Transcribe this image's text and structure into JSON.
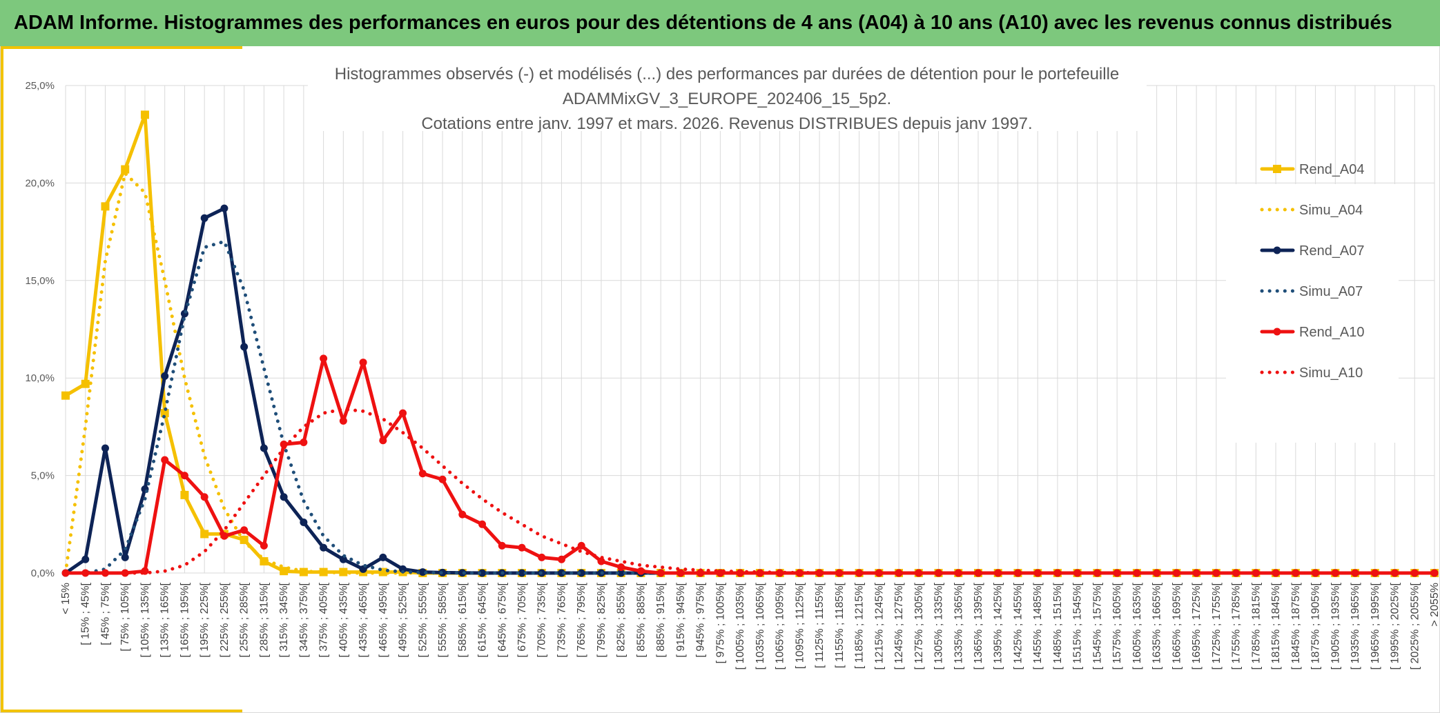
{
  "banner": {
    "title": "ADAM Informe. Histogrammes des performances en euros pour des détentions de 4 ans (A04) à 10 ans (A10) avec les revenus connus distribués",
    "bg_color": "#7dc87d"
  },
  "chart_data": {
    "type": "line",
    "title_lines": [
      "Histogrammes observés (-) et modélisés (...) des performances par durées de détention pour le portefeuille",
      "ADAMMixGV_3_EUROPE_202406_15_5p2.",
      "Cotations entre janv. 1997 et mars. 2026. Revenus DISTRIBUES depuis janv 1997."
    ],
    "xlabel": "",
    "ylabel": "",
    "ylim": [
      0,
      25
    ],
    "yticks": [
      0,
      5,
      10,
      15,
      20,
      25
    ],
    "ytick_labels": [
      "0,0%",
      "5,0%",
      "10,0%",
      "15,0%",
      "20,0%",
      "25,0%"
    ],
    "grid": true,
    "legend_position": "right",
    "categories": [
      "< 15%",
      "[ 15% ; 45%[",
      "[ 45% ; 75%[",
      "[ 75% ; 105%[",
      "[ 105% ; 135%[",
      "[ 135% ; 165%[",
      "[ 165% ; 195%[",
      "[ 195% ; 225%[",
      "[ 225% ; 255%[",
      "[ 255% ; 285%[",
      "[ 285% ; 315%[",
      "[ 315% ; 345%[",
      "[ 345% ; 375%[",
      "[ 375% ; 405%[",
      "[ 405% ; 435%[",
      "[ 435% ; 465%[",
      "[ 465% ; 495%[",
      "[ 495% ; 525%[",
      "[ 525% ; 555%[",
      "[ 555% ; 585%[",
      "[ 585% ; 615%[",
      "[ 615% ; 645%[",
      "[ 645% ; 675%[",
      "[ 675% ; 705%[",
      "[ 705% ; 735%[",
      "[ 735% ; 765%[",
      "[ 765% ; 795%[",
      "[ 795% ; 825%[",
      "[ 825% ; 855%[",
      "[ 855% ; 885%[",
      "[ 885% ; 915%[",
      "[ 915% ; 945%[",
      "[ 945% ; 975%[",
      "[ 975% ; 1005%[",
      "[ 1005% ; 1035%[",
      "[ 1035% ; 1065%[",
      "[ 1065% ; 1095%[",
      "[ 1095% ; 1125%[",
      "[ 1125% ; 1155%[",
      "[ 1155% ; 1185%[",
      "[ 1185% ; 1215%[",
      "[ 1215% ; 1245%[",
      "[ 1245% ; 1275%[",
      "[ 1275% ; 1305%[",
      "[ 1305% ; 1335%[",
      "[ 1335% ; 1365%[",
      "[ 1365% ; 1395%[",
      "[ 1395% ; 1425%[",
      "[ 1425% ; 1455%[",
      "[ 1455% ; 1485%[",
      "[ 1485% ; 1515%[",
      "[ 1515% ; 1545%[",
      "[ 1545% ; 1575%[",
      "[ 1575% ; 1605%[",
      "[ 1605% ; 1635%[",
      "[ 1635% ; 1665%[",
      "[ 1665% ; 1695%[",
      "[ 1695% ; 1725%[",
      "[ 1725% ; 1755%[",
      "[ 1755% ; 1785%[",
      "[ 1785% ; 1815%[",
      "[ 1815% ; 1845%[",
      "[ 1845% ; 1875%[",
      "[ 1875% ; 1905%[",
      "[ 1905% ; 1935%[",
      "[ 1935% ; 1965%[",
      "[ 1965% ; 1995%[",
      "[ 1995% ; 2025%[",
      "[ 2025% ; 2055%[",
      "> 2055%"
    ],
    "series": [
      {
        "name": "Rend_A04",
        "color": "#f5c000",
        "style": "solid",
        "marker": "square",
        "values": [
          9.1,
          9.7,
          18.8,
          20.7,
          23.5,
          8.2,
          4.0,
          2.0,
          2.0,
          1.7,
          0.6,
          0.1,
          0.05,
          0.05,
          0.05,
          0.05,
          0.05,
          0.05,
          0,
          0,
          0,
          0,
          0,
          0,
          0,
          0,
          0,
          0,
          0,
          0,
          0,
          0,
          0,
          0,
          0,
          0,
          0,
          0,
          0,
          0,
          0,
          0,
          0,
          0,
          0,
          0,
          0,
          0,
          0,
          0,
          0,
          0,
          0,
          0,
          0,
          0,
          0,
          0,
          0,
          0,
          0,
          0,
          0,
          0,
          0,
          0,
          0,
          0,
          0,
          0
        ]
      },
      {
        "name": "Simu_A04",
        "color": "#f5c000",
        "style": "dotted",
        "marker": "none",
        "values": [
          0,
          7.5,
          16.0,
          20.5,
          19.5,
          15.0,
          10.0,
          6.0,
          3.3,
          1.6,
          0.7,
          0.3,
          0.1,
          0.04,
          0.01,
          0,
          0,
          0,
          0,
          0,
          0,
          0,
          0,
          0,
          0,
          0,
          0,
          0,
          0,
          0,
          0,
          0,
          0,
          0,
          0,
          0,
          0,
          0,
          0,
          0,
          0,
          0,
          0,
          0,
          0,
          0,
          0,
          0,
          0,
          0,
          0,
          0,
          0,
          0,
          0,
          0,
          0,
          0,
          0,
          0,
          0,
          0,
          0,
          0,
          0,
          0,
          0,
          0,
          0,
          0
        ]
      },
      {
        "name": "Rend_A07",
        "color": "#0d2356",
        "style": "solid",
        "marker": "circle",
        "values": [
          0,
          0.7,
          6.4,
          0.8,
          4.3,
          10.1,
          13.3,
          18.2,
          18.7,
          11.6,
          6.4,
          3.9,
          2.6,
          1.3,
          0.7,
          0.2,
          0.8,
          0.2,
          0.05,
          0.02,
          0.01,
          0,
          0,
          0,
          0,
          0,
          0,
          0,
          0,
          0,
          0,
          0,
          0,
          0,
          0,
          0,
          0,
          0,
          0,
          0,
          0,
          0,
          0,
          0,
          0,
          0,
          0,
          0,
          0,
          0,
          0,
          0,
          0,
          0,
          0,
          0,
          0,
          0,
          0,
          0,
          0,
          0,
          0,
          0,
          0,
          0,
          0,
          0,
          0,
          0
        ]
      },
      {
        "name": "Simu_A07",
        "color": "#1f4e79",
        "style": "dotted",
        "marker": "none",
        "values": [
          0,
          0,
          0.2,
          1.2,
          3.8,
          8.2,
          13.2,
          16.7,
          17.0,
          14.5,
          10.5,
          6.6,
          3.7,
          1.9,
          0.9,
          0.4,
          0.15,
          0.06,
          0.02,
          0.01,
          0,
          0,
          0,
          0,
          0,
          0,
          0,
          0,
          0,
          0,
          0,
          0,
          0,
          0,
          0,
          0,
          0,
          0,
          0,
          0,
          0,
          0,
          0,
          0,
          0,
          0,
          0,
          0,
          0,
          0,
          0,
          0,
          0,
          0,
          0,
          0,
          0,
          0,
          0,
          0,
          0,
          0,
          0,
          0,
          0,
          0,
          0,
          0,
          0,
          0
        ]
      },
      {
        "name": "Rend_A10",
        "color": "#ee1111",
        "style": "solid",
        "marker": "circle",
        "values": [
          0,
          0,
          0,
          0,
          0.1,
          5.8,
          5.0,
          3.9,
          1.9,
          2.2,
          1.4,
          6.6,
          6.7,
          11.0,
          7.8,
          10.8,
          6.8,
          8.2,
          5.1,
          4.8,
          3.0,
          2.5,
          1.4,
          1.3,
          0.8,
          0.7,
          1.4,
          0.6,
          0.3,
          0.1,
          0,
          0,
          0,
          0,
          0,
          0,
          0,
          0,
          0,
          0,
          0,
          0,
          0,
          0,
          0,
          0,
          0,
          0,
          0,
          0,
          0,
          0,
          0,
          0,
          0,
          0,
          0,
          0,
          0,
          0,
          0,
          0,
          0,
          0,
          0,
          0,
          0,
          0,
          0,
          0
        ]
      },
      {
        "name": "Simu_A10",
        "color": "#ee1111",
        "style": "dotted",
        "marker": "none",
        "values": [
          0,
          0,
          0,
          0,
          0,
          0.1,
          0.4,
          1.1,
          2.2,
          3.6,
          5.0,
          6.4,
          7.5,
          8.2,
          8.4,
          8.3,
          7.9,
          7.2,
          6.4,
          5.5,
          4.6,
          3.8,
          3.1,
          2.5,
          1.9,
          1.5,
          1.1,
          0.8,
          0.6,
          0.4,
          0.3,
          0.2,
          0.15,
          0.1,
          0.07,
          0.05,
          0.03,
          0.02,
          0.01,
          0,
          0,
          0,
          0,
          0,
          0,
          0,
          0,
          0,
          0,
          0,
          0,
          0,
          0,
          0,
          0,
          0,
          0,
          0,
          0,
          0,
          0,
          0,
          0,
          0,
          0,
          0,
          0,
          0,
          0,
          0
        ]
      }
    ]
  }
}
